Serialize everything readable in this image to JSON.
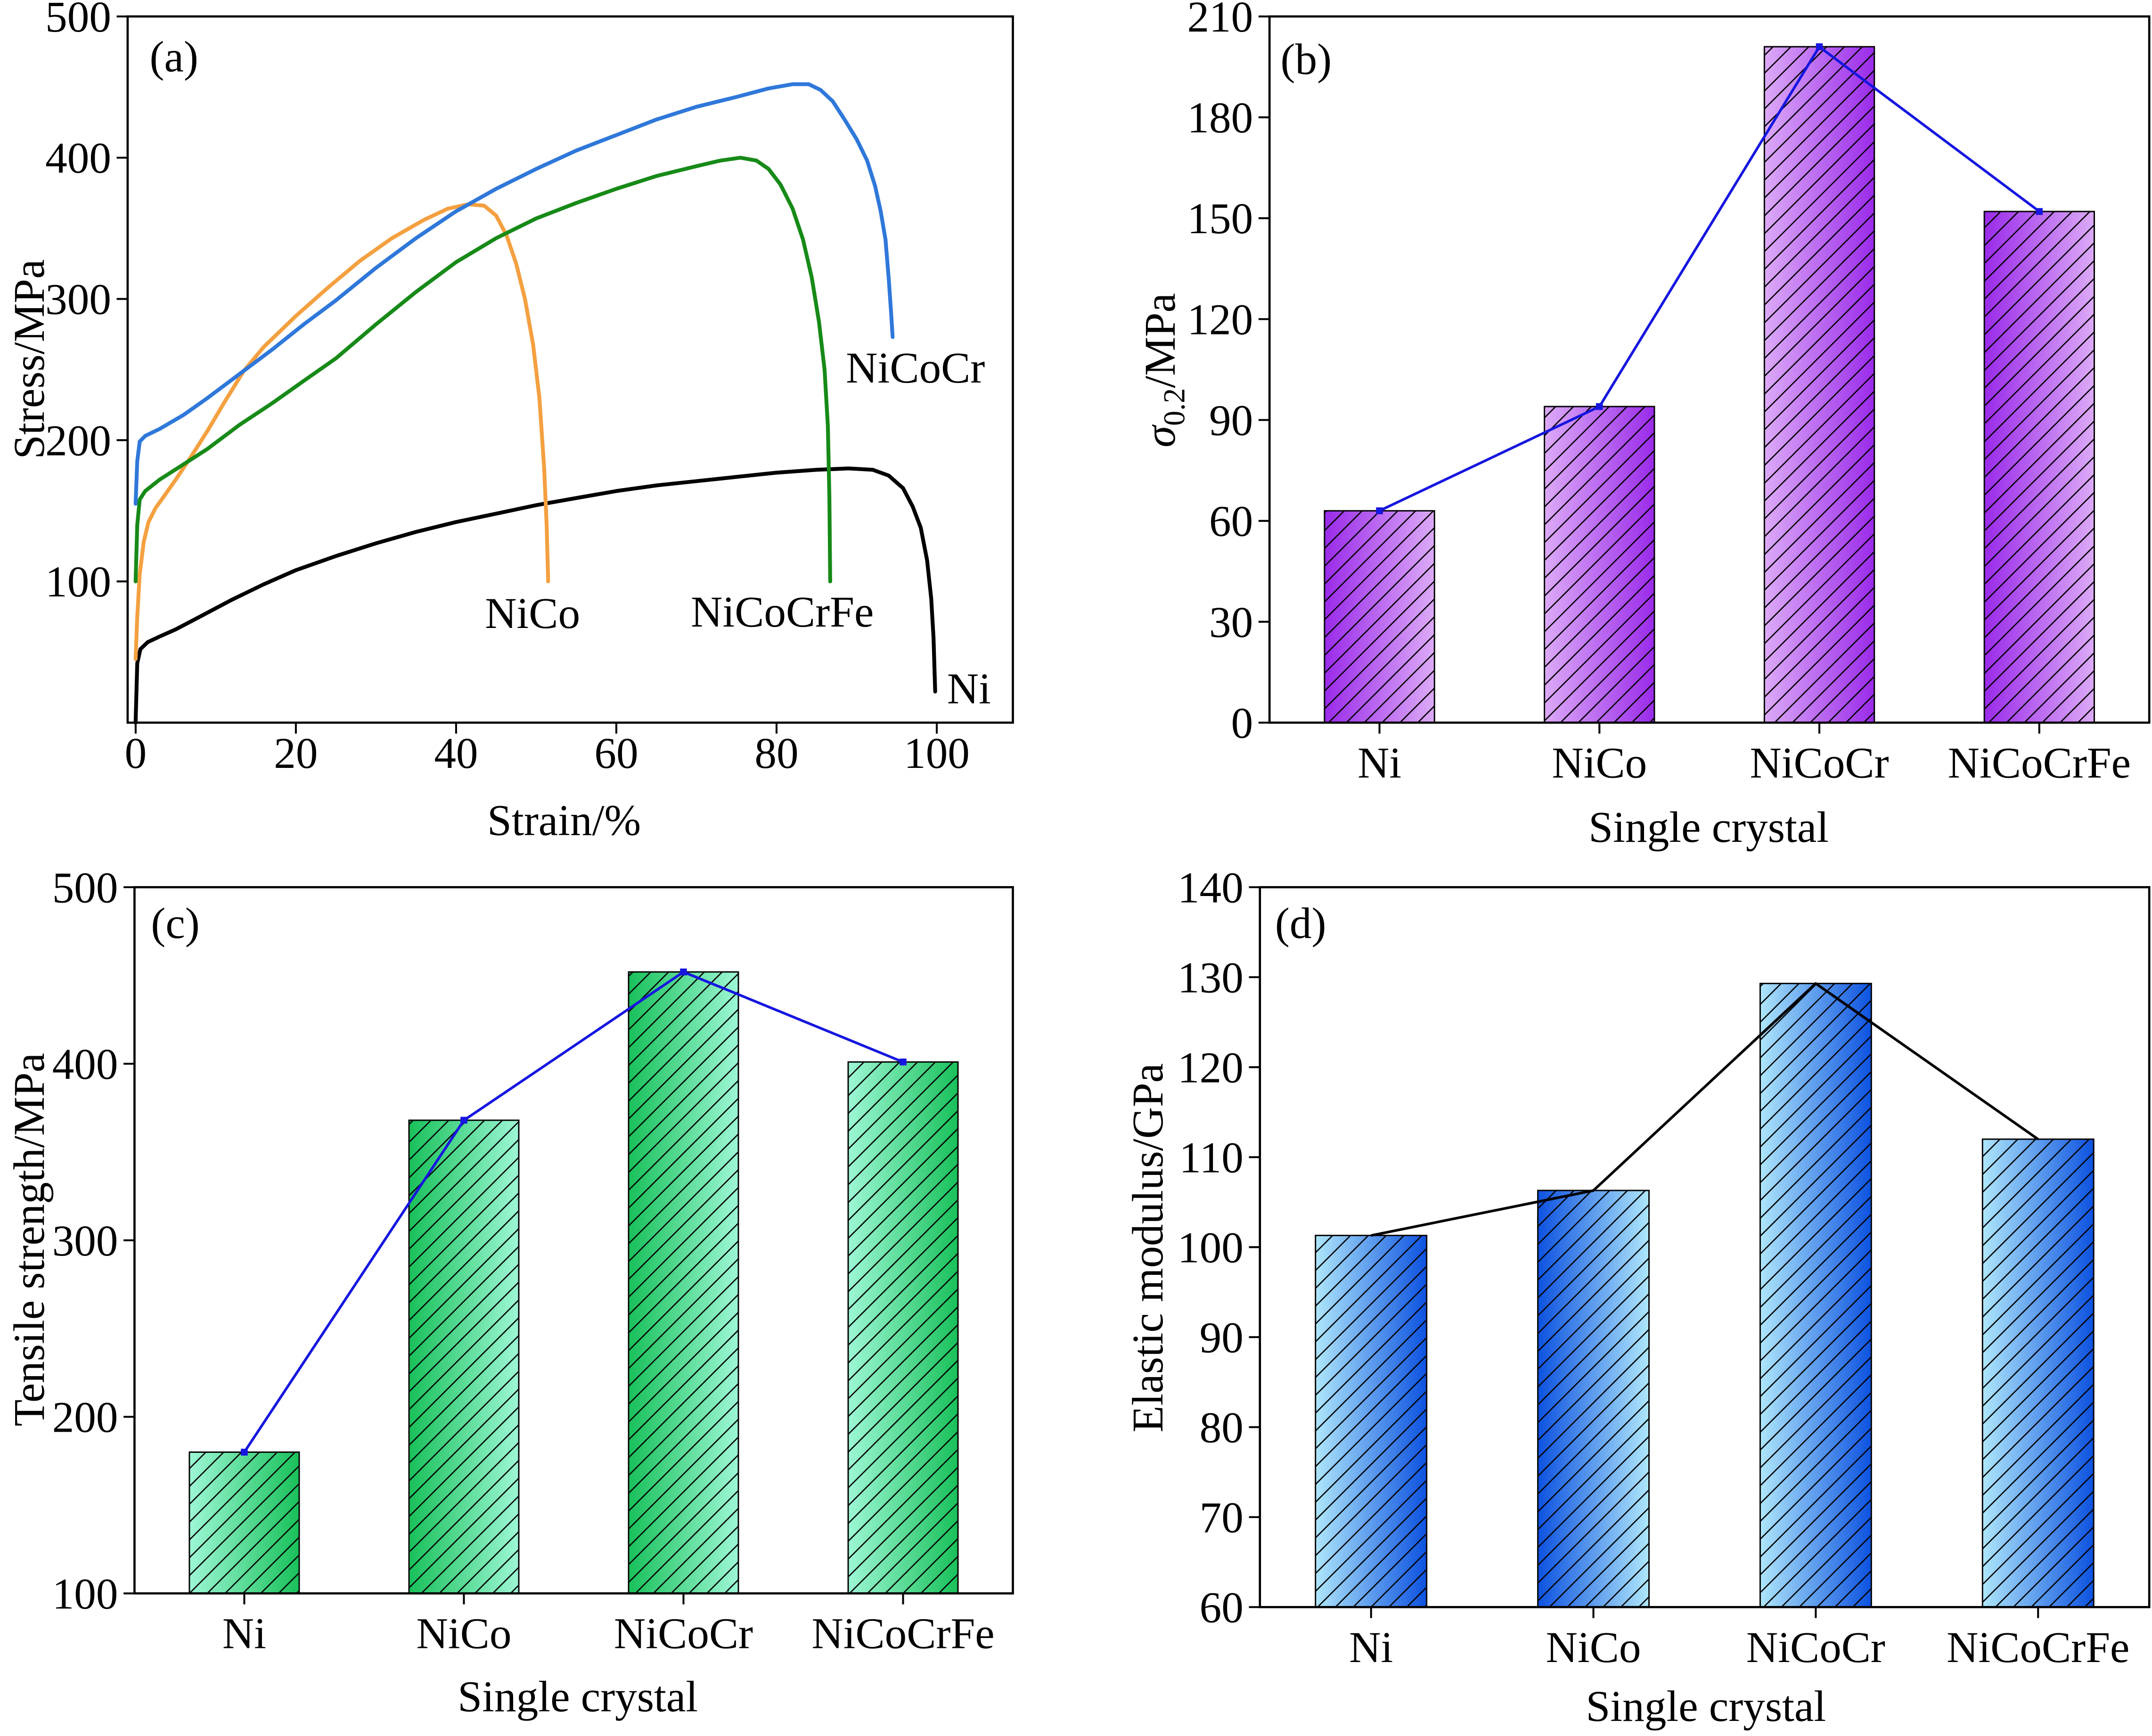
{
  "chart_data": [
    {
      "panel": "(a)",
      "type": "line",
      "xlabel": "Strain/%",
      "ylabel": "Stress/MPa",
      "xlim": [
        -1,
        109.5
      ],
      "ylim": [
        0,
        500
      ],
      "xticks": [
        0,
        20,
        40,
        60,
        80,
        100
      ],
      "yticks": [
        100,
        200,
        300,
        400,
        500
      ],
      "series": [
        {
          "name": "Ni",
          "color": "#000000",
          "points": [
            [
              0,
              0
            ],
            [
              0.2,
              42
            ],
            [
              0.6,
              52
            ],
            [
              1.5,
              57
            ],
            [
              3,
              61
            ],
            [
              5,
              66
            ],
            [
              8,
              75
            ],
            [
              12,
              87
            ],
            [
              16,
              98
            ],
            [
              20,
              108
            ],
            [
              25,
              118
            ],
            [
              30,
              127
            ],
            [
              35,
              135
            ],
            [
              40,
              142
            ],
            [
              45,
              148
            ],
            [
              50,
              154
            ],
            [
              55,
              159
            ],
            [
              60,
              164
            ],
            [
              65,
              168
            ],
            [
              70,
              171
            ],
            [
              75,
              174
            ],
            [
              80,
              177
            ],
            [
              85,
              179
            ],
            [
              89,
              180
            ],
            [
              92,
              179
            ],
            [
              94,
              175
            ],
            [
              95.8,
              166
            ],
            [
              97,
              153
            ],
            [
              98,
              138
            ],
            [
              98.8,
              115
            ],
            [
              99.3,
              88
            ],
            [
              99.6,
              60
            ],
            [
              99.8,
              22
            ]
          ]
        },
        {
          "name": "NiCo",
          "color": "#f4a040",
          "points": [
            [
              0,
              45
            ],
            [
              0.2,
              75
            ],
            [
              0.5,
              105
            ],
            [
              1,
              128
            ],
            [
              1.6,
              142
            ],
            [
              2.5,
              152
            ],
            [
              3.5,
              160
            ],
            [
              5,
              172
            ],
            [
              7,
              189
            ],
            [
              9,
              207
            ],
            [
              11,
              226
            ],
            [
              13.5,
              249
            ],
            [
              16,
              266
            ],
            [
              20,
              288
            ],
            [
              24,
              308
            ],
            [
              28,
              327
            ],
            [
              32,
              343
            ],
            [
              36,
              356
            ],
            [
              39,
              364
            ],
            [
              41.5,
              367
            ],
            [
              43.5,
              366
            ],
            [
              45,
              359
            ],
            [
              46.3,
              345
            ],
            [
              47.5,
              325
            ],
            [
              48.6,
              300
            ],
            [
              49.6,
              268
            ],
            [
              50.4,
              230
            ],
            [
              51,
              180
            ],
            [
              51.3,
              140
            ],
            [
              51.5,
              100
            ]
          ]
        },
        {
          "name": "NiCoCr",
          "color": "#2f78da",
          "points": [
            [
              0,
              155
            ],
            [
              0.2,
              185
            ],
            [
              0.5,
              199
            ],
            [
              1.2,
              203
            ],
            [
              3,
              208
            ],
            [
              6,
              218
            ],
            [
              9,
              230
            ],
            [
              13,
              247
            ],
            [
              17,
              264
            ],
            [
              21,
              282
            ],
            [
              25,
              299
            ],
            [
              30,
              322
            ],
            [
              35,
              343
            ],
            [
              40,
              362
            ],
            [
              45,
              378
            ],
            [
              50,
              392
            ],
            [
              55,
              405
            ],
            [
              60,
              416
            ],
            [
              65,
              427
            ],
            [
              70,
              436
            ],
            [
              75,
              443
            ],
            [
              79,
              449
            ],
            [
              82,
              452
            ],
            [
              84,
              452
            ],
            [
              85.5,
              448
            ],
            [
              87,
              440
            ],
            [
              88.5,
              427
            ],
            [
              90,
              413
            ],
            [
              91.3,
              398
            ],
            [
              92.3,
              380
            ],
            [
              93,
              362
            ],
            [
              93.6,
              342
            ],
            [
              94,
              315
            ],
            [
              94.3,
              290
            ],
            [
              94.5,
              273
            ]
          ]
        },
        {
          "name": "NiCoCrFe",
          "color": "#178a18",
          "points": [
            [
              0,
              100
            ],
            [
              0.2,
              140
            ],
            [
              0.5,
              158
            ],
            [
              1.2,
              164
            ],
            [
              3,
              172
            ],
            [
              6,
              183
            ],
            [
              9,
              194
            ],
            [
              13,
              211
            ],
            [
              17,
              226
            ],
            [
              21,
              242
            ],
            [
              25,
              258
            ],
            [
              30,
              282
            ],
            [
              35,
              305
            ],
            [
              40,
              326
            ],
            [
              45,
              343
            ],
            [
              50,
              357
            ],
            [
              55,
              368
            ],
            [
              60,
              378
            ],
            [
              65,
              387
            ],
            [
              70,
              394
            ],
            [
              73,
              398
            ],
            [
              75.5,
              400
            ],
            [
              77.5,
              398
            ],
            [
              79,
              392
            ],
            [
              80.5,
              381
            ],
            [
              82,
              364
            ],
            [
              83.3,
              342
            ],
            [
              84.4,
              315
            ],
            [
              85.3,
              284
            ],
            [
              86,
              250
            ],
            [
              86.4,
              210
            ],
            [
              86.6,
              160
            ],
            [
              86.7,
              100
            ]
          ]
        }
      ]
    },
    {
      "panel": "(b)",
      "type": "bar",
      "categories": [
        "Ni",
        "NiCo",
        "NiCoCr",
        "NiCoCrFe"
      ],
      "values": [
        63,
        94,
        201,
        152
      ],
      "xlabel": "Single crystal",
      "ylabel": {
        "symbol": "σ",
        "subscript": "0.2",
        "unit": "/MPa"
      },
      "ylim": [
        0,
        210
      ],
      "yticks": [
        0,
        30,
        60,
        90,
        120,
        150,
        180,
        210
      ],
      "line_color": "#1616e0",
      "show_markers": true,
      "bar_colors": {
        "light": "#dcaaf7",
        "dark": "#9a2bea"
      }
    },
    {
      "panel": "(c)",
      "type": "bar",
      "categories": [
        "Ni",
        "NiCo",
        "NiCoCr",
        "NiCoCrFe"
      ],
      "values": [
        180,
        368,
        452,
        401
      ],
      "xlabel": "Single crystal",
      "ylabel": "Tensile strength/MPa",
      "ylim": [
        100,
        500
      ],
      "yticks": [
        100,
        200,
        300,
        400,
        500
      ],
      "line_color": "#1616e0",
      "show_markers": true,
      "bar_colors": {
        "light": "#9df7d5",
        "dark": "#19c05a"
      }
    },
    {
      "panel": "(d)",
      "type": "bar",
      "categories": [
        "Ni",
        "NiCo",
        "NiCoCr",
        "NiCoCrFe"
      ],
      "values": [
        101.3,
        106.3,
        129.3,
        112.0
      ],
      "xlabel": "Single crystal",
      "ylabel": "Elastic modulus/GPa",
      "ylim": [
        60,
        140
      ],
      "yticks": [
        60,
        70,
        80,
        90,
        100,
        110,
        120,
        130,
        140
      ],
      "line_color": "#000000",
      "show_markers": false,
      "bar_colors": {
        "light": "#aee6fb",
        "dark": "#0d52e0"
      }
    }
  ]
}
